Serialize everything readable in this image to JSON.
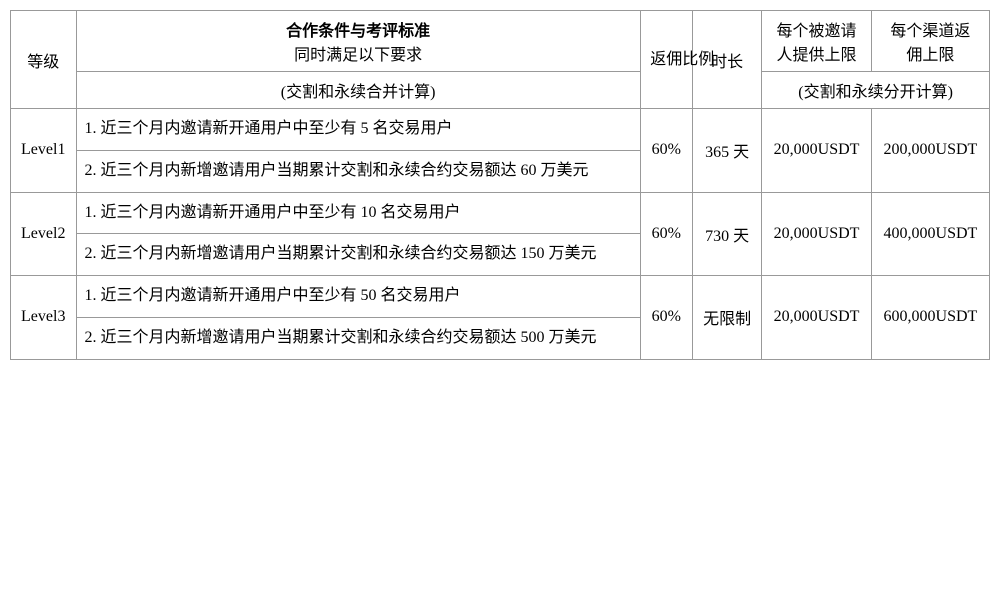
{
  "header": {
    "level": "等级",
    "criteria_title": "合作条件与考评标准",
    "criteria_subtitle": "同时满足以下要求",
    "criteria_note": "(交割和永续合并计算)",
    "rebate_ratio": "返佣比例",
    "duration": "时长",
    "per_invitee_cap": "每个被邀请人提供上限",
    "per_channel_cap": "每个渠道返佣上限",
    "cap_note": "(交割和永续分开计算)"
  },
  "rows": [
    {
      "level": "Level1",
      "cond1": "1. 近三个月内邀请新开通用户中至少有 5 名交易用户",
      "cond2": "2. 近三个月内新增邀请用户当期累计交割和永续合约交易额达 60 万美元",
      "ratio": "60%",
      "duration": "365 天",
      "per_invitee": "20,000USDT",
      "per_channel": "200,000USDT"
    },
    {
      "level": "Level2",
      "cond1": "1. 近三个月内邀请新开通用户中至少有 10 名交易用户",
      "cond2": "2. 近三个月内新增邀请用户当期累计交割和永续合约交易额达 150 万美元",
      "ratio": "60%",
      "duration": "730 天",
      "per_invitee": "20,000USDT",
      "per_channel": "400,000USDT"
    },
    {
      "level": "Level3",
      "cond1": "1. 近三个月内邀请新开通用户中至少有 50 名交易用户",
      "cond2": "2. 近三个月内新增邀请用户当期累计交割和永续合约交易额达 500 万美元",
      "ratio": "60%",
      "duration": "无限制",
      "per_invitee": "20,000USDT",
      "per_channel": "600,000USDT"
    }
  ]
}
